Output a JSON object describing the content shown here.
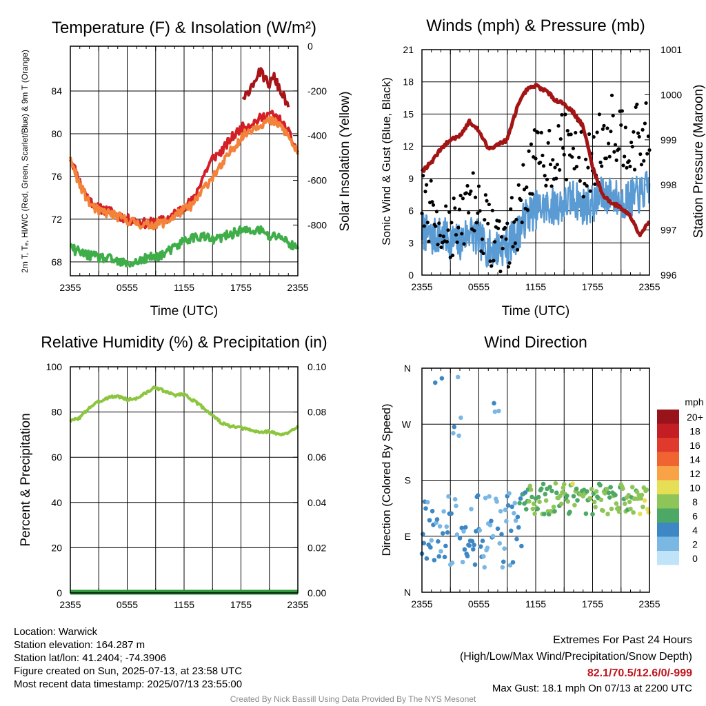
{
  "colors": {
    "temp": "#d41f26",
    "dew": "#3fae49",
    "heat": "#a81418",
    "nine": "#f3833a",
    "rh": "#8cc63f",
    "precip": "#2f9a3e",
    "wind": "#5a9bd4",
    "gust": "#000000",
    "pressure": "#a31515"
  },
  "chart_data": [
    {
      "id": "temperature",
      "type": "line",
      "title": "Temperature (F) & Insolation (W/m²)",
      "xlabel": "Time (UTC)",
      "ylabel": "2m T, Tₑ, HI/WC (Red, Green, Scarlet/Blue) & 9m T (Orange)",
      "ylabel_right": "Solar Insolation (Yellow)",
      "x_ticks": [
        "2355",
        "0555",
        "1155",
        "1755",
        "2355"
      ],
      "y_ticks": [
        68,
        72,
        76,
        80,
        84
      ],
      "y_ticks_right": [
        0,
        -200,
        -400,
        -600,
        -800
      ],
      "ylim": [
        66.7,
        88.2
      ],
      "ylim_right": [
        -1027,
        0
      ],
      "grid": true,
      "series": [
        {
          "key": "temp",
          "x": [
            0,
            1,
            2,
            3,
            4,
            6,
            8,
            10,
            11,
            12,
            13,
            14,
            15,
            16,
            17,
            18,
            19,
            20,
            21,
            22,
            23,
            24
          ],
          "values": [
            77.8,
            75.5,
            73.8,
            73.0,
            72.8,
            72.0,
            71.6,
            71.9,
            72.5,
            73.2,
            73.8,
            76.0,
            77.7,
            78.4,
            79.6,
            80.5,
            80.9,
            81.4,
            81.9,
            81.4,
            80.1,
            78.3
          ]
        },
        {
          "key": "nine",
          "x": [
            0,
            1,
            2,
            3,
            4,
            6,
            8,
            10,
            11,
            12,
            13,
            14,
            15,
            16,
            17,
            18,
            19,
            20,
            21,
            22,
            23,
            24
          ],
          "values": [
            77.6,
            75.2,
            73.5,
            72.7,
            72.6,
            71.9,
            71.4,
            71.7,
            72.3,
            72.9,
            73.4,
            74.8,
            76.0,
            77.0,
            78.5,
            79.6,
            80.4,
            80.9,
            81.2,
            80.9,
            79.8,
            78.1
          ]
        },
        {
          "key": "heat",
          "x": [
            18.2,
            19,
            20,
            21,
            21.5,
            22,
            23
          ],
          "values": [
            82.9,
            84.4,
            85.8,
            84.6,
            85.3,
            84.3,
            82.6
          ]
        },
        {
          "key": "dew",
          "x": [
            0,
            1,
            2,
            3,
            4,
            5,
            6,
            7,
            8,
            9,
            10,
            11,
            12,
            13,
            14,
            15,
            16,
            17,
            18,
            19,
            20,
            21,
            22,
            23,
            24
          ],
          "values": [
            69.3,
            68.9,
            68.6,
            68.4,
            68.3,
            68.0,
            67.8,
            68.0,
            68.3,
            68.5,
            68.8,
            69.3,
            70.0,
            70.3,
            70.4,
            70.0,
            70.3,
            70.6,
            71.0,
            70.8,
            71.0,
            70.3,
            70.5,
            69.8,
            69.2
          ]
        }
      ]
    },
    {
      "id": "winds",
      "type": "line",
      "title": "Winds (mph) & Pressure (mb)",
      "xlabel": "Time (UTC)",
      "ylabel": "Sonic Wind & Gust (Blue, Black)",
      "ylabel_right": "Station Pressure (Maroon)",
      "x_ticks": [
        "2355",
        "0555",
        "1155",
        "1755",
        "2355"
      ],
      "y_ticks": [
        0,
        3,
        6,
        9,
        12,
        15,
        18,
        21
      ],
      "y_ticks_right": [
        996,
        997,
        998,
        999,
        1000,
        1001
      ],
      "ylim": [
        0,
        21
      ],
      "ylim_right": [
        996,
        1001
      ],
      "grid": true,
      "series": [
        {
          "key": "wind",
          "x": [
            0,
            1,
            2,
            3,
            4,
            5,
            6,
            7,
            8,
            9,
            10,
            11,
            12,
            13,
            14,
            15,
            16,
            17,
            18,
            19,
            20,
            21,
            22,
            23,
            24
          ],
          "values": [
            4.2,
            3.4,
            3.8,
            3.2,
            3.0,
            4.2,
            3.3,
            2.4,
            2.5,
            2.8,
            3.7,
            5.5,
            6.1,
            6.3,
            6.4,
            6.6,
            7.2,
            6.4,
            6.6,
            7.4,
            7.5,
            6.8,
            7.2,
            7.5,
            8.2
          ]
        },
        {
          "key": "pressure",
          "x": [
            0,
            1,
            2,
            3,
            4,
            5,
            6,
            7,
            8,
            9,
            10,
            11,
            12,
            13,
            14,
            15,
            16,
            17,
            18,
            19,
            20,
            21,
            22,
            23,
            24
          ],
          "values": [
            998.3,
            998.5,
            998.8,
            999.0,
            999.1,
            999.4,
            999.2,
            998.8,
            998.9,
            999.0,
            999.7,
            1000.1,
            1000.2,
            1000.1,
            999.9,
            999.8,
            999.6,
            999.3,
            998.4,
            997.8,
            997.6,
            997.5,
            997.3,
            996.9,
            997.2
          ]
        },
        {
          "key": "gust",
          "x": [
            0,
            1,
            2,
            3,
            4,
            5,
            6,
            7,
            8,
            9,
            10,
            11,
            12,
            13,
            14,
            15,
            16,
            17,
            18,
            19,
            20,
            21,
            22,
            23,
            24
          ],
          "values": [
            7.0,
            5.5,
            5.0,
            4.8,
            4.0,
            7.5,
            6.0,
            3.8,
            3.5,
            3.2,
            5.0,
            9.0,
            10.5,
            11.0,
            11.5,
            12.0,
            12.2,
            10.2,
            10.5,
            12.5,
            14.5,
            13.0,
            13.0,
            12.5,
            13.0
          ]
        }
      ]
    },
    {
      "id": "humidity",
      "type": "line",
      "title": "Relative Humidity (%) & Precipitation (in)",
      "ylabel": "Percent & Precipitation",
      "x_ticks": [
        "2355",
        "0555",
        "1155",
        "1755",
        "2355"
      ],
      "y_ticks": [
        0,
        20,
        40,
        60,
        80,
        100
      ],
      "y_ticks_right": [
        "0.00",
        "0.02",
        "0.04",
        "0.06",
        "0.08",
        "0.10"
      ],
      "ylim": [
        0,
        100
      ],
      "ylim_right": [
        0,
        0.1
      ],
      "grid": true,
      "series": [
        {
          "key": "rh",
          "x": [
            0,
            1,
            2,
            3,
            4,
            5,
            6,
            7,
            8,
            9,
            10,
            11,
            12,
            13,
            14,
            15,
            16,
            17,
            18,
            19,
            20,
            21,
            22,
            23,
            24
          ],
          "values": [
            76,
            77.5,
            82,
            84.5,
            86.5,
            87,
            85.5,
            86,
            88.5,
            91,
            89,
            87.5,
            88,
            85,
            82,
            78.5,
            75,
            73.5,
            73,
            72,
            71,
            71.5,
            70,
            70.5,
            74
          ]
        },
        {
          "key": "precip",
          "x": [
            0,
            24
          ],
          "values": [
            0,
            0
          ]
        }
      ]
    },
    {
      "id": "direction",
      "type": "scatter",
      "title": "Wind Direction",
      "ylabel": "Direction (Colored By Speed)",
      "x_ticks": [
        "2355",
        "0555",
        "1155",
        "1755",
        "2355"
      ],
      "y_ticks": [
        "N",
        "E",
        "S",
        "W",
        "N"
      ],
      "ylim": [
        0,
        360
      ],
      "grid": true,
      "legend_title": "mph",
      "legend_labels": [
        "20+",
        "18",
        "16",
        "14",
        "12",
        "10",
        "8",
        "6",
        "4",
        "2",
        "0"
      ],
      "legend_colors": [
        "#99141a",
        "#c41d24",
        "#e03a2d",
        "#f06432",
        "#f9a347",
        "#e6df56",
        "#8dc558",
        "#4da866",
        "#3d88c4",
        "#7ab7e3",
        "#bfe4f7"
      ]
    }
  ],
  "footer": {
    "location": "Location: Warwick",
    "elevation": "Station elevation: 164.287 m",
    "latlon": "Station lat/lon: 41.2404; -74.3906",
    "created": "Figure created on Sun, 2025-07-13, at 23:58 UTC",
    "recent": "Most recent data timestamp: 2025/07/13 23:55:00",
    "extremes_title": "Extremes For Past 24 Hours",
    "extremes_sub": "(High/Low/Max Wind/Precipitation/Snow Depth)",
    "extremes_values": "82.1/70.5/12.6/0/-999",
    "max_gust": "Max Gust: 18.1 mph On 07/13 at 2200 UTC",
    "credit": "Created By Nick Bassill Using Data Provided By The NYS Mesonet"
  }
}
